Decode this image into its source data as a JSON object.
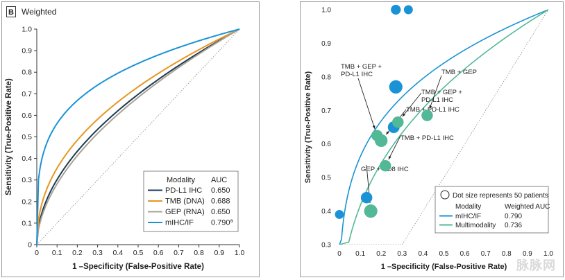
{
  "chart_data": [
    {
      "type": "line",
      "panel_label": "B",
      "title": "Weighted",
      "xlabel": "1 –Specificity (False-Positive Rate)",
      "ylabel": "Sensitivity (True-Positive Rate)",
      "xlim": [
        0,
        1
      ],
      "ylim": [
        0,
        1
      ],
      "xticks": [
        "0",
        "0.1",
        "0.2",
        "0.3",
        "0.4",
        "0.5",
        "0.6",
        "0.7",
        "0.8",
        "0.9",
        "1.0"
      ],
      "yticks": [
        "0",
        "0.1",
        "0.2",
        "0.3",
        "0.4",
        "0.5",
        "0.6",
        "0.7",
        "0.8",
        "0.9",
        "1.0"
      ],
      "diagonal_reference": true,
      "legend": {
        "placement": "bottom-right",
        "header_modality": "Modality",
        "header_auc": "AUC"
      },
      "series": [
        {
          "name": "PD-L1 IHC",
          "auc": "0.650",
          "color": "#1b3a57",
          "curve_power": 0.52
        },
        {
          "name": "TMB (DNA)",
          "auc": "0.688",
          "color": "#e8951e",
          "curve_power": 0.45
        },
        {
          "name": "GEP (RNA)",
          "auc": "0.650",
          "color": "#a8a293",
          "curve_power": 0.55
        },
        {
          "name": "mIHC/IF",
          "auc": "0.790",
          "auc_superscript": "a",
          "color": "#1a93d6",
          "curve_power": 0.25
        }
      ]
    },
    {
      "type": "scatter",
      "xlabel": "1 –Specificity (False-Positive Rate)",
      "ylabel": "Sensitivity (True-Positive Rate)",
      "xlim": [
        0,
        1
      ],
      "ylim": [
        0.3,
        1
      ],
      "xticks": [
        "0",
        "0.1",
        "0.2",
        "0.3",
        "0.4",
        "0.5",
        "0.6",
        "0.7",
        "0.8",
        "0.9",
        "1.0"
      ],
      "yticks": [
        "0.3",
        "0.4",
        "0.5",
        "0.6",
        "0.7",
        "0.8",
        "0.9",
        "1.0"
      ],
      "diagonal_reference": true,
      "dot_size_note": "Dot size represents 50 patients",
      "legend": {
        "placement": "bottom-right",
        "header_modality": "Modality",
        "header_auc": "Weighted AUC"
      },
      "series": [
        {
          "name": "mIHC/IF",
          "auc": "0.790",
          "color": "#1a93d6",
          "curve_power": 0.25
        },
        {
          "name": "Multimodality",
          "auc": "0.736",
          "color": "#52b898",
          "curve_power": 0.38
        }
      ],
      "points": [
        {
          "series": "mIHC/IF",
          "x": 0.0,
          "y": 0.39,
          "patients": 30
        },
        {
          "series": "mIHC/IF",
          "x": 0.13,
          "y": 0.44,
          "patients": 60
        },
        {
          "series": "mIHC/IF",
          "x": 0.27,
          "y": 1.0,
          "patients": 40
        },
        {
          "series": "mIHC/IF",
          "x": 0.33,
          "y": 1.0,
          "patients": 30
        },
        {
          "series": "mIHC/IF",
          "x": 0.27,
          "y": 0.77,
          "patients": 90
        },
        {
          "series": "mIHC/IF",
          "x": 0.26,
          "y": 0.65,
          "patients": 65
        },
        {
          "series": "Multimodality",
          "x": 0.15,
          "y": 0.4,
          "patients": 90,
          "label": "GEP + CD8 IHC"
        },
        {
          "series": "Multimodality",
          "x": 0.22,
          "y": 0.535,
          "patients": 60,
          "label": "TMB + PD-L1 IHC"
        },
        {
          "series": "Multimodality",
          "x": 0.18,
          "y": 0.625,
          "patients": 60,
          "label": "TMB + GEP + PD-L1 IHC"
        },
        {
          "series": "Multimodality",
          "x": 0.2,
          "y": 0.61,
          "patients": 80,
          "label": "TMB + PD-L1 IHC"
        },
        {
          "series": "Multimodality",
          "x": 0.28,
          "y": 0.665,
          "patients": 60,
          "label": "TMB + GEP + PD-L1 IHC"
        },
        {
          "series": "Multimodality",
          "x": 0.42,
          "y": 0.685,
          "patients": 60,
          "label": "TMB + GEP"
        }
      ]
    }
  ],
  "watermark": "脉脉网"
}
